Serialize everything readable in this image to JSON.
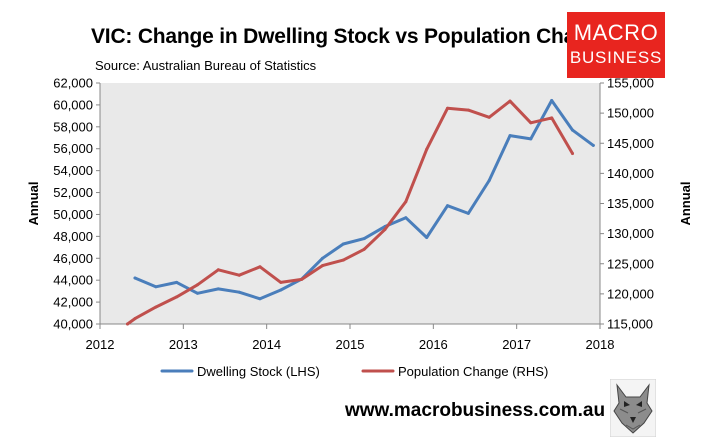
{
  "chart_data": {
    "type": "line",
    "title": "VIC: Change in Dwelling Stock vs Population Change",
    "source": "Source: Australian Bureau of Statistics",
    "ylabel_left": "Annual",
    "ylabel_right": "Annual",
    "xlim": [
      2012,
      2018
    ],
    "x_ticks": [
      "2012",
      "2013",
      "2014",
      "2015",
      "2016",
      "2017",
      "2018"
    ],
    "ylim_left": [
      40000,
      62000
    ],
    "ylim_right": [
      115000,
      155000
    ],
    "y_ticks_left": [
      "40,000",
      "42,000",
      "44,000",
      "46,000",
      "48,000",
      "50,000",
      "52,000",
      "54,000",
      "56,000",
      "58,000",
      "60,000",
      "62,000"
    ],
    "y_ticks_right": [
      "115,000",
      "120,000",
      "125,000",
      "130,000",
      "135,000",
      "140,000",
      "145,000",
      "150,000",
      "155,000"
    ],
    "series": [
      {
        "name": "Dwelling Stock (LHS)",
        "axis": "left",
        "color": "#4a7ebb",
        "x": [
          2012.42,
          2012.67,
          2012.92,
          2013.17,
          2013.42,
          2013.67,
          2013.92,
          2014.17,
          2014.42,
          2014.67,
          2014.92,
          2015.17,
          2015.42,
          2015.67,
          2015.92,
          2016.17,
          2016.42,
          2016.67,
          2016.92,
          2017.17,
          2017.42,
          2017.67,
          2017.92
        ],
        "values": [
          44200,
          43400,
          43800,
          42800,
          43200,
          42900,
          42300,
          43100,
          44100,
          46000,
          47300,
          47800,
          48900,
          49700,
          47900,
          50800,
          50100,
          53100,
          57200,
          56900,
          60400,
          57700,
          56300
        ]
      },
      {
        "name": "Population Change (RHS)",
        "axis": "right",
        "color": "#c0504d",
        "x": [
          2012.33,
          2012.42,
          2012.67,
          2012.92,
          2013.17,
          2013.42,
          2013.67,
          2013.92,
          2014.17,
          2014.42,
          2014.67,
          2014.92,
          2015.17,
          2015.42,
          2015.67,
          2015.92,
          2016.17,
          2016.42,
          2016.67,
          2016.92,
          2017.17,
          2017.42,
          2017.67
        ],
        "values": [
          115000,
          115900,
          117800,
          119500,
          121500,
          124000,
          123100,
          124500,
          121900,
          122400,
          124700,
          125600,
          127400,
          130700,
          135300,
          144000,
          150800,
          150500,
          149300,
          152000,
          148400,
          149200,
          143300
        ]
      }
    ],
    "legend_position": "bottom",
    "grid": false
  },
  "branding": {
    "logo_line1": "MACRO",
    "logo_line2": "BUSINESS",
    "url": "www.macrobusiness.com.au",
    "logo_icon": "wolf-icon"
  }
}
